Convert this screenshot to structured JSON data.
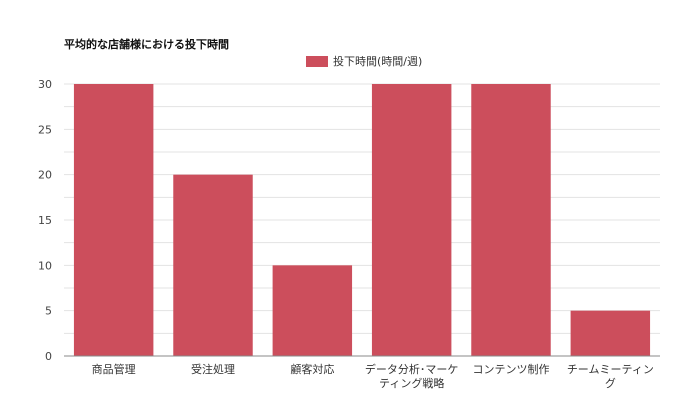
{
  "chart_data": {
    "type": "bar",
    "title": "平均的な店舗様における投下時間",
    "categories": [
      [
        "商品管理"
      ],
      [
        "受注処理"
      ],
      [
        "顧客対応"
      ],
      [
        "データ分析･マーケ",
        "ティング戦略"
      ],
      [
        "コンテンツ制作"
      ],
      [
        "チームミーティン",
        "グ"
      ]
    ],
    "series": [
      {
        "name": "投下時間(時間/週)",
        "values": [
          30,
          20,
          10,
          30,
          30,
          5
        ]
      }
    ],
    "ylim": [
      0,
      30
    ],
    "yticks": [
      0,
      5,
      10,
      15,
      20,
      25,
      30
    ],
    "grid": true,
    "legend_position": "top-center",
    "bar_color": "#cc4e5c"
  }
}
